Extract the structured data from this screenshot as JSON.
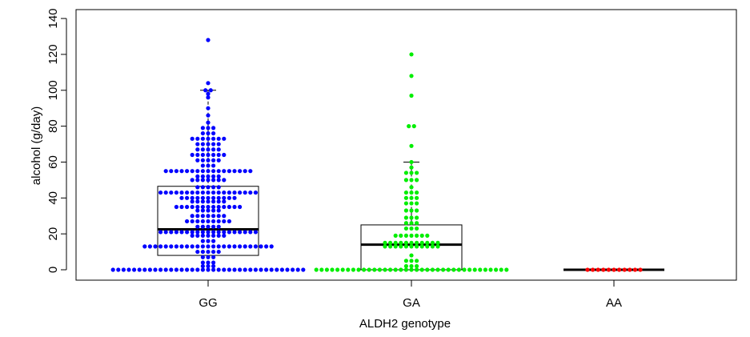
{
  "chart_data": {
    "type": "beeswarm-boxplot",
    "xlabel": "ALDH2 genotype",
    "ylabel": "alcohol (g/day)",
    "ylim": [
      -5,
      145
    ],
    "y_ticks": [
      0,
      20,
      40,
      60,
      80,
      100,
      120,
      140
    ],
    "categories": [
      "GG",
      "GA",
      "AA"
    ],
    "colors": {
      "GG": "#0000ff",
      "GA": "#00ee00",
      "AA": "#ff0000"
    },
    "boxes": [
      {
        "category": "GG",
        "q1": 8,
        "median": 22.5,
        "q3": 46.5,
        "whisker_low": 0,
        "whisker_high": 100
      },
      {
        "category": "GA",
        "q1": 0,
        "median": 14,
        "q3": 25,
        "whisker_low": 0,
        "whisker_high": 60
      },
      {
        "category": "AA",
        "q1": 0,
        "median": 0,
        "q3": 0,
        "whisker_low": 0,
        "whisker_high": 0
      }
    ],
    "series": [
      {
        "category": "GG",
        "groups": [
          {
            "value": 0,
            "count": 37
          },
          {
            "value": 2,
            "count": 3
          },
          {
            "value": 4,
            "count": 3
          },
          {
            "value": 7,
            "count": 3
          },
          {
            "value": 10,
            "count": 5
          },
          {
            "value": 13,
            "count": 25
          },
          {
            "value": 16,
            "count": 3
          },
          {
            "value": 19,
            "count": 7
          },
          {
            "value": 21,
            "count": 19
          },
          {
            "value": 24,
            "count": 5
          },
          {
            "value": 27,
            "count": 9
          },
          {
            "value": 30,
            "count": 7
          },
          {
            "value": 33,
            "count": 5
          },
          {
            "value": 35,
            "count": 13
          },
          {
            "value": 38,
            "count": 7
          },
          {
            "value": 40,
            "count": 11
          },
          {
            "value": 43,
            "count": 19
          },
          {
            "value": 46,
            "count": 5
          },
          {
            "value": 50,
            "count": 7
          },
          {
            "value": 52,
            "count": 5
          },
          {
            "value": 55,
            "count": 17
          },
          {
            "value": 58,
            "count": 3
          },
          {
            "value": 61,
            "count": 5
          },
          {
            "value": 64,
            "count": 7
          },
          {
            "value": 67,
            "count": 5
          },
          {
            "value": 70,
            "count": 5
          },
          {
            "value": 73,
            "count": 7
          },
          {
            "value": 76,
            "count": 3
          },
          {
            "value": 79,
            "count": 3
          },
          {
            "value": 82,
            "count": 1
          },
          {
            "value": 86,
            "count": 1
          },
          {
            "value": 90,
            "count": 1
          },
          {
            "value": 96,
            "count": 1
          },
          {
            "value": 98,
            "count": 1
          },
          {
            "value": 100,
            "count": 2
          },
          {
            "value": 104,
            "count": 1
          },
          {
            "value": 128,
            "count": 1
          }
        ]
      },
      {
        "category": "GA",
        "groups": [
          {
            "value": 0,
            "count": 37
          },
          {
            "value": 2,
            "count": 3
          },
          {
            "value": 5,
            "count": 3
          },
          {
            "value": 8,
            "count": 1
          },
          {
            "value": 13,
            "count": 11
          },
          {
            "value": 15,
            "count": 11
          },
          {
            "value": 19,
            "count": 7
          },
          {
            "value": 23,
            "count": 3
          },
          {
            "value": 26,
            "count": 3
          },
          {
            "value": 29,
            "count": 3
          },
          {
            "value": 33,
            "count": 3
          },
          {
            "value": 37,
            "count": 3
          },
          {
            "value": 40,
            "count": 3
          },
          {
            "value": 43,
            "count": 3
          },
          {
            "value": 46,
            "count": 1
          },
          {
            "value": 50,
            "count": 3
          },
          {
            "value": 54,
            "count": 3
          },
          {
            "value": 57,
            "count": 1
          },
          {
            "value": 60,
            "count": 1
          },
          {
            "value": 69,
            "count": 1
          },
          {
            "value": 80,
            "count": 2
          },
          {
            "value": 97,
            "count": 1
          },
          {
            "value": 108,
            "count": 1
          },
          {
            "value": 120,
            "count": 1
          }
        ]
      },
      {
        "category": "AA",
        "groups": [
          {
            "value": 0,
            "count": 11
          }
        ]
      }
    ]
  }
}
